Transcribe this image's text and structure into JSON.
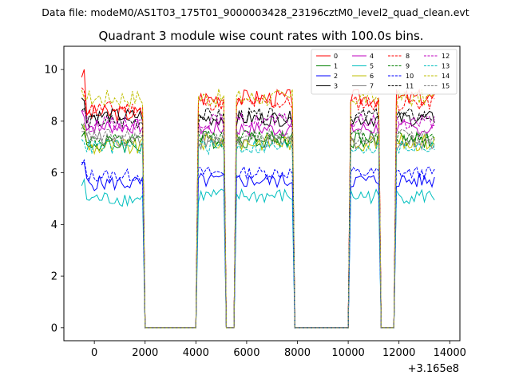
{
  "figure": {
    "suptitle": "Data file: modeM0/AS1T03_175T01_9000003428_23196cztM0_level2_quad_clean.evt",
    "background": "#ffffff"
  },
  "chart_data": {
    "type": "line",
    "title": "Quadrant 3 module wise count rates with 100.0s bins.",
    "xlabel": "",
    "ylabel": "",
    "x_offset_label": "+3.165e8",
    "xlim": [
      -1200,
      14400
    ],
    "ylim": [
      -0.5,
      10.9
    ],
    "x_ticks": [
      0,
      2000,
      4000,
      6000,
      8000,
      10000,
      12000,
      14000
    ],
    "y_ticks": [
      0,
      2,
      4,
      6,
      8,
      10
    ],
    "bin_width_s": 100,
    "grid": false,
    "legend_placement": "top-right",
    "legend_columns": 4,
    "segments": [
      {
        "start": -500,
        "end": 1900
      },
      {
        "start": 4100,
        "end": 4900
      },
      {
        "start": 5000,
        "end": 5100
      },
      {
        "start": 5600,
        "end": 7800
      },
      {
        "start": 10100,
        "end": 11000
      },
      {
        "start": 11100,
        "end": 11200
      },
      {
        "start": 11900,
        "end": 13400
      }
    ],
    "gap_value": 0,
    "series": [
      {
        "name": "0",
        "color": "#ff0000",
        "dash": "solid",
        "base": 8.3,
        "start": 9.7,
        "second_level": 8.9,
        "noise": 0.35
      },
      {
        "name": "1",
        "color": "#008000",
        "dash": "solid",
        "base": 7.1,
        "start": 7.4,
        "second_level": 7.3,
        "noise": 0.35
      },
      {
        "name": "2",
        "color": "#0000ff",
        "dash": "solid",
        "base": 5.6,
        "start": 6.4,
        "second_level": 5.7,
        "noise": 0.3
      },
      {
        "name": "3",
        "color": "#000000",
        "dash": "solid",
        "base": 8.2,
        "start": 8.9,
        "second_level": 8.1,
        "noise": 0.3
      },
      {
        "name": "4",
        "color": "#bf00bf",
        "dash": "solid",
        "base": 7.8,
        "start": 8.4,
        "second_level": 7.7,
        "noise": 0.3
      },
      {
        "name": "5",
        "color": "#00bfbf",
        "dash": "solid",
        "base": 5.0,
        "start": 5.5,
        "second_level": 5.1,
        "noise": 0.3
      },
      {
        "name": "6",
        "color": "#bfbf00",
        "dash": "solid",
        "base": 7.0,
        "start": 7.7,
        "second_level": 7.2,
        "noise": 0.35
      },
      {
        "name": "7",
        "color": "#808080",
        "dash": "solid",
        "base": 7.3,
        "start": 7.6,
        "second_level": 7.2,
        "noise": 0.3
      },
      {
        "name": "8",
        "color": "#ff0000",
        "dash": "dashed",
        "base": 8.5,
        "start": 9.3,
        "second_level": 8.7,
        "noise": 0.3
      },
      {
        "name": "9",
        "color": "#008000",
        "dash": "dashed",
        "base": 7.2,
        "start": 7.9,
        "second_level": 7.4,
        "noise": 0.3
      },
      {
        "name": "10",
        "color": "#0000ff",
        "dash": "dashed",
        "base": 5.9,
        "start": 6.3,
        "second_level": 6.0,
        "noise": 0.25
      },
      {
        "name": "11",
        "color": "#000000",
        "dash": "dashed",
        "base": 8.0,
        "start": 8.4,
        "second_level": 8.2,
        "noise": 0.3
      },
      {
        "name": "12",
        "color": "#bf00bf",
        "dash": "dashed",
        "base": 7.9,
        "start": 8.4,
        "second_level": 8.0,
        "noise": 0.3
      },
      {
        "name": "13",
        "color": "#00bfbf",
        "dash": "dashed",
        "base": 7.0,
        "start": 7.3,
        "second_level": 7.0,
        "noise": 0.3
      },
      {
        "name": "14",
        "color": "#bfbf00",
        "dash": "dashed",
        "base": 8.9,
        "start": 9.2,
        "second_level": 8.9,
        "noise": 0.35
      },
      {
        "name": "15",
        "color": "#808080",
        "dash": "dashed",
        "base": 7.4,
        "start": 7.7,
        "second_level": 7.4,
        "noise": 0.3
      }
    ]
  }
}
